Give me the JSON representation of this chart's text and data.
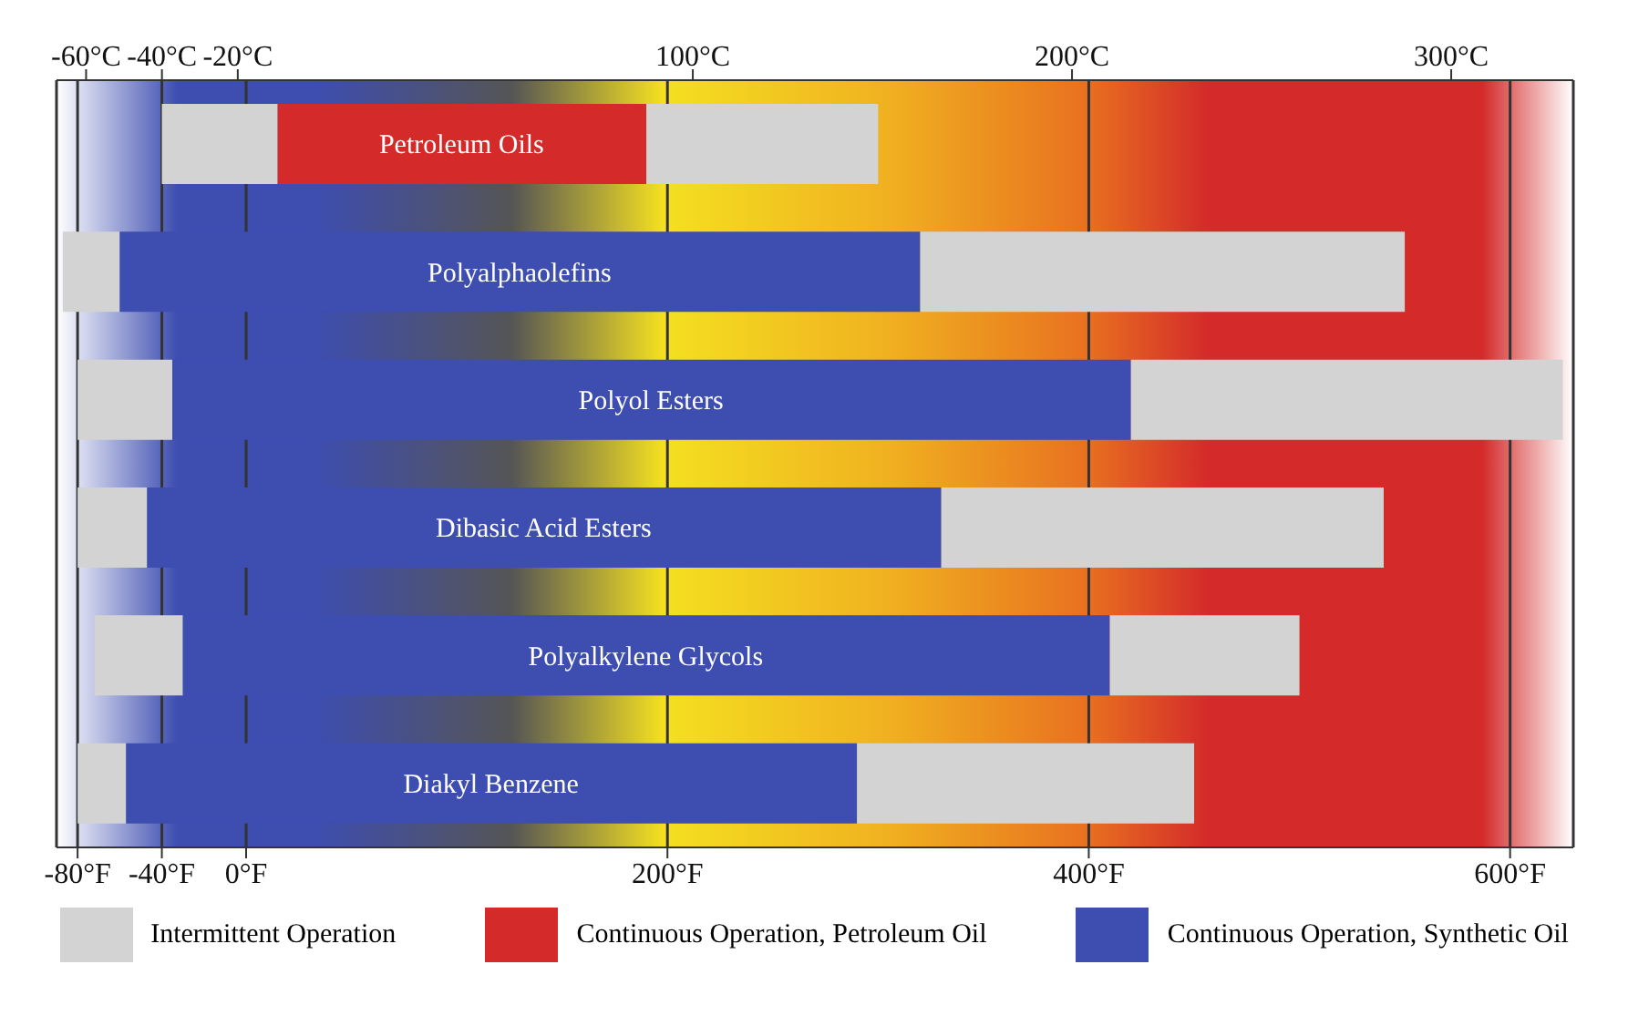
{
  "chart_data": {
    "type": "bar",
    "orientation": "horizontal",
    "categories": [
      "Petroleum Oils",
      "Polyalphaolefins",
      "Polyol Esters",
      "Dibasic Acid Esters",
      "Polyalkylene Glycols",
      "Diakyl Benzene"
    ],
    "series": [
      {
        "name": "Intermittent Operation",
        "color": "#d3d3d3",
        "base": [
          -40,
          -87,
          -80,
          -80,
          -72,
          -80
        ],
        "values": [
          55,
          27,
          45,
          33,
          42,
          23
        ]
      },
      {
        "name": "Continuous Operation, Petroleum Oil",
        "color": "#d42a2a",
        "base": [
          15,
          null,
          null,
          null,
          null,
          null
        ],
        "values": [
          175,
          null,
          null,
          null,
          null,
          null
        ]
      },
      {
        "name": "Continuous Operation, Synthetic Oil",
        "color": "#3d4db0",
        "base": [
          null,
          -60,
          -35,
          -47,
          -30,
          -57
        ],
        "values": [
          null,
          380,
          455,
          377,
          440,
          347
        ]
      },
      {
        "color": "#d3d3d3",
        "base": [
          190,
          320,
          420,
          330,
          410,
          290
        ],
        "values": [
          110,
          230,
          205,
          210,
          90,
          160
        ]
      }
    ],
    "xlim": [
      -90,
      630
    ],
    "xticks": [
      {
        "value": -80,
        "label": "-80°F"
      },
      {
        "value": -40,
        "label": "-40°F"
      },
      {
        "value": 0,
        "label": "0°F"
      },
      {
        "value": 200,
        "label": "200°F"
      },
      {
        "value": 400,
        "label": "400°F"
      },
      {
        "value": 600,
        "label": "600°F"
      }
    ],
    "x2lim": [
      -67.8,
      332.2
    ],
    "x2ticks": [
      {
        "value": -60,
        "label": "-60°C"
      },
      {
        "value": -40,
        "label": "-40°C"
      },
      {
        "value": -20,
        "label": "-20°C"
      },
      {
        "value": 100,
        "label": "100°C"
      },
      {
        "value": 200,
        "label": "200°C"
      },
      {
        "value": 300,
        "label": "300°C"
      }
    ],
    "grid": "x",
    "legend": "bottom"
  }
}
